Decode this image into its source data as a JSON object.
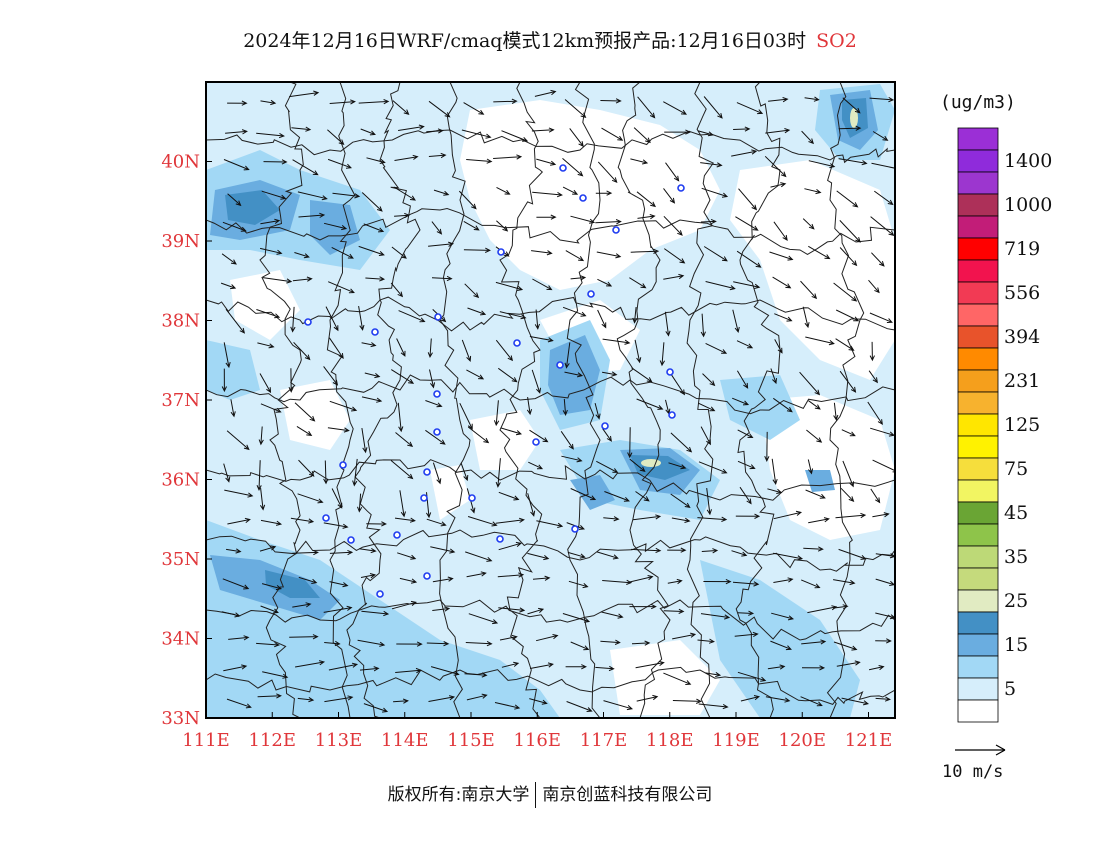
{
  "title": {
    "main": "2024年12月16日WRF/cmaq模式12km预报产品:12月16日03时",
    "pollutant": "SO2"
  },
  "map": {
    "lat_labels": [
      "40N",
      "39N",
      "38N",
      "37N",
      "36N",
      "35N",
      "34N",
      "33N"
    ],
    "lon_labels": [
      "111E",
      "112E",
      "113E",
      "114E",
      "115E",
      "116E",
      "117E",
      "118E",
      "119E",
      "120E",
      "121E"
    ],
    "lat_range": [
      33,
      41
    ],
    "lon_range": [
      111,
      121.4
    ],
    "axis_label_color": "#e0363a",
    "city_marker_color": "#1f3cf0"
  },
  "legend": {
    "unit": "(ug/m3)",
    "levels": [
      {
        "label": "",
        "color": "#9b2fd6"
      },
      {
        "label": "1400",
        "color": "#8f2bdb"
      },
      {
        "label": "",
        "color": "#9c36cf"
      },
      {
        "label": "1000",
        "color": "#ad3059"
      },
      {
        "label": "",
        "color": "#c21d78"
      },
      {
        "label": "719",
        "color": "#ff0000"
      },
      {
        "label": "",
        "color": "#f2134e"
      },
      {
        "label": "556",
        "color": "#f23a54"
      },
      {
        "label": "",
        "color": "#ff6666"
      },
      {
        "label": "394",
        "color": "#e8532b"
      },
      {
        "label": "",
        "color": "#ff8a00"
      },
      {
        "label": "231",
        "color": "#f59f1c"
      },
      {
        "label": "",
        "color": "#f7b22e"
      },
      {
        "label": "125",
        "color": "#ffe600"
      },
      {
        "label": "",
        "color": "#fff200"
      },
      {
        "label": "75",
        "color": "#f6de3c"
      },
      {
        "label": "",
        "color": "#f2f562"
      },
      {
        "label": "45",
        "color": "#6aa534"
      },
      {
        "label": "",
        "color": "#8ec44a"
      },
      {
        "label": "35",
        "color": "#bdd977"
      },
      {
        "label": "",
        "color": "#c5da7c"
      },
      {
        "label": "25",
        "color": "#e1ebc2"
      },
      {
        "label": "",
        "color": "#4390c5"
      },
      {
        "label": "15",
        "color": "#6aade0"
      },
      {
        "label": "",
        "color": "#a2d8f5"
      },
      {
        "label": "5",
        "color": "#d6eefb"
      },
      {
        "label": "",
        "color": "#ffffff"
      }
    ],
    "wind_scale_label": "10 m/s"
  },
  "footer": {
    "copyright": "版权所有:南京大学",
    "company": "南京创蓝科技有限公司"
  }
}
